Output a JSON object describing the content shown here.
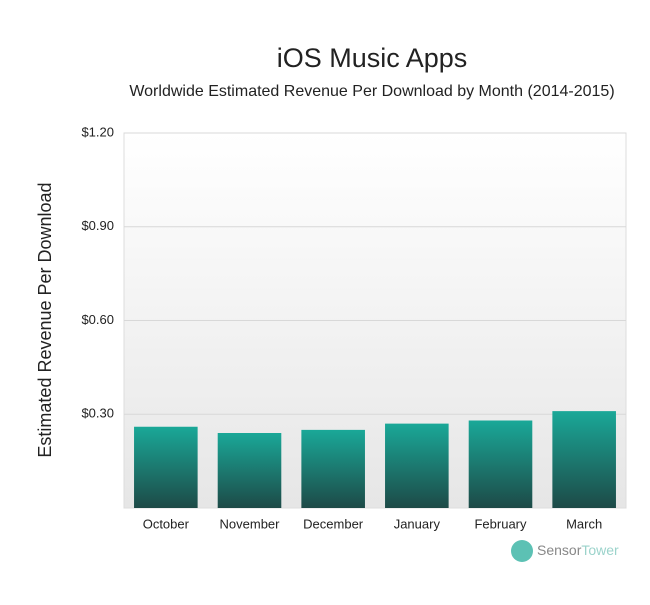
{
  "chart_data": {
    "type": "bar",
    "title": "iOS Music Apps",
    "subtitle": "Worldwide Estimated Revenue Per Download by Month (2014-2015)",
    "y_label": "Estimated Revenue Per Download",
    "categories": [
      "October",
      "November",
      "December",
      "January",
      "February",
      "March"
    ],
    "values": [
      0.26,
      0.24,
      0.25,
      0.27,
      0.28,
      0.31
    ],
    "color": "#1aa898",
    "ylim": [
      0,
      1.2
    ],
    "yticks": [
      {
        "value": 0.3,
        "label": "$0.30"
      },
      {
        "value": 0.6,
        "label": "$0.60"
      },
      {
        "value": 0.9,
        "label": "$0.90"
      },
      {
        "value": 1.2,
        "label": "$1.20"
      }
    ],
    "grid": true,
    "watermark": [
      "Sensor",
      "Tower"
    ]
  }
}
